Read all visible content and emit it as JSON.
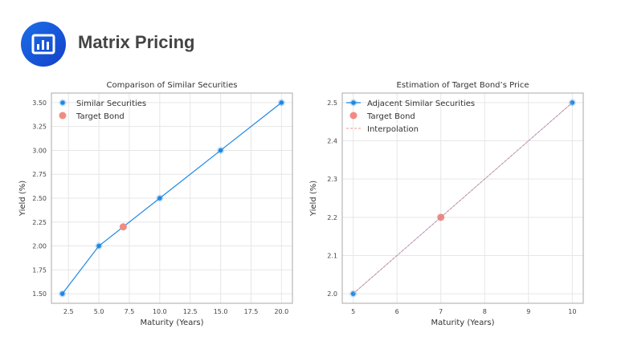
{
  "header": {
    "title": "Matrix Pricing",
    "icon": "bar-chart-icon"
  },
  "colors": {
    "series": "#1e88e5",
    "target": "#f28b82",
    "interpolation": "#e89a9a",
    "grid": "#e6e6e6",
    "frame": "#aaaaaa"
  },
  "chart_data": [
    {
      "type": "line",
      "title": "Comparison of Similar Securities",
      "xlabel": "Maturity (Years)",
      "ylabel": "Yield (%)",
      "xlim": [
        1.1,
        20.9
      ],
      "ylim": [
        1.4,
        3.6
      ],
      "xticks": [
        "2.5",
        "5.0",
        "7.5",
        "10.0",
        "12.5",
        "15.0",
        "17.5",
        "20.0"
      ],
      "yticks": [
        "1.50",
        "1.75",
        "2.00",
        "2.25",
        "2.50",
        "2.75",
        "3.00",
        "3.25",
        "3.50"
      ],
      "grid": true,
      "legend": "top-left",
      "series": [
        {
          "name": "Similar Securities",
          "x": [
            2,
            5,
            10,
            15,
            20
          ],
          "y": [
            1.5,
            2.0,
            2.5,
            3.0,
            3.5
          ]
        },
        {
          "name": "Target Bond",
          "x": [
            7
          ],
          "y": [
            2.2
          ]
        }
      ]
    },
    {
      "type": "line",
      "title": "Estimation of Target Bond’s Price",
      "xlabel": "Maturity (Years)",
      "ylabel": "Yield (%)",
      "xlim": [
        4.75,
        10.25
      ],
      "ylim": [
        1.975,
        2.525
      ],
      "xticks": [
        "5",
        "6",
        "7",
        "8",
        "9",
        "10"
      ],
      "yticks": [
        "2.0",
        "2.1",
        "2.2",
        "2.3",
        "2.4",
        "2.5"
      ],
      "grid": true,
      "legend": "top-left",
      "series": [
        {
          "name": "Adjacent Similar Securities",
          "x": [
            5,
            10
          ],
          "y": [
            2.0,
            2.5
          ]
        },
        {
          "name": "Target Bond",
          "x": [
            7
          ],
          "y": [
            2.2
          ]
        },
        {
          "name": "Interpolation",
          "x": [
            5,
            10
          ],
          "y": [
            2.0,
            2.5
          ]
        }
      ]
    }
  ]
}
